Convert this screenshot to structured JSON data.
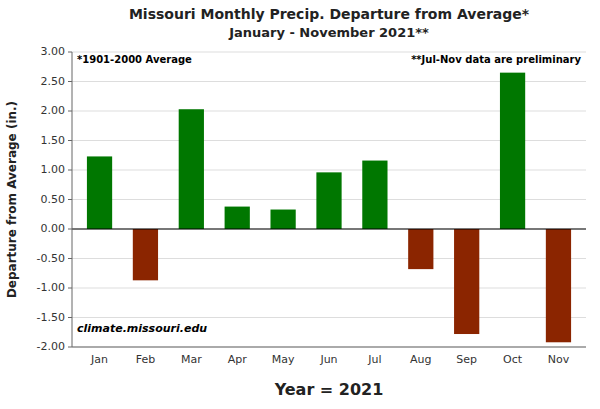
{
  "chart_data": {
    "type": "bar",
    "title": "Missouri Monthly Precip. Departure from Average*",
    "subtitle": "January - November 2021**",
    "categories": [
      "Jan",
      "Feb",
      "Mar",
      "Apr",
      "May",
      "Jun",
      "Jul",
      "Aug",
      "Sep",
      "Oct",
      "Nov"
    ],
    "values": [
      1.23,
      -0.87,
      2.03,
      0.38,
      0.33,
      0.96,
      1.16,
      -0.68,
      -1.78,
      2.65,
      -1.92
    ],
    "colors": [
      "#007700",
      "#8B2500",
      "#007700",
      "#007700",
      "#007700",
      "#007700",
      "#007700",
      "#8B2500",
      "#8B2500",
      "#007700",
      "#8B2500"
    ],
    "x_label": "Year = 2021",
    "y_label": "Departure from Average (in.)",
    "ylim": [
      -2.0,
      3.0
    ],
    "yticks": [
      {
        "value": -2.0,
        "label": "-2.00"
      },
      {
        "value": -1.5,
        "label": "-1.50"
      },
      {
        "value": -1.0,
        "label": "-1.00"
      },
      {
        "value": -0.5,
        "label": "-0.50"
      },
      {
        "value": 0.0,
        "label": "0.00"
      },
      {
        "value": 0.5,
        "label": "0.50"
      },
      {
        "value": 1.0,
        "label": "1.00"
      },
      {
        "value": 1.5,
        "label": "1.50"
      },
      {
        "value": 2.0,
        "label": "2.00"
      },
      {
        "value": 2.5,
        "label": "2.50"
      },
      {
        "value": 3.0,
        "label": "3.00"
      }
    ],
    "annotations": [
      "*1901-2000 Average",
      "**Jul-Nov data are preliminary",
      "climate.missouri.edu"
    ],
    "grid": true
  }
}
